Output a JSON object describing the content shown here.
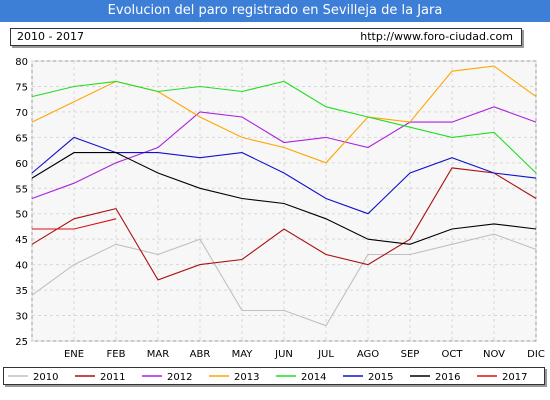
{
  "title": "Evolucion del paro registrado en Sevilleja de la Jara",
  "info_left": "2010 - 2017",
  "info_right": "http://www.foro-ciudad.com",
  "chart_data": {
    "type": "line",
    "title": "Evolucion del paro registrado en Sevilleja de la Jara",
    "x": [
      "",
      "ENE",
      "FEB",
      "MAR",
      "ABR",
      "MAY",
      "JUN",
      "JUL",
      "AGO",
      "SEP",
      "OCT",
      "NOV",
      "DIC"
    ],
    "ylim": [
      25,
      80
    ],
    "yticks": [
      25,
      30,
      35,
      40,
      45,
      50,
      55,
      60,
      65,
      70,
      75,
      80
    ],
    "grid": true,
    "legend_position": "bottom",
    "series": [
      {
        "name": "2010",
        "color": "#c0c0c0",
        "values": [
          34,
          40,
          44,
          42,
          45,
          31,
          31,
          28,
          42,
          42,
          44,
          46,
          43
        ]
      },
      {
        "name": "2011",
        "color": "#aa1111",
        "values": [
          44,
          49,
          51,
          37,
          40,
          41,
          47,
          42,
          40,
          45,
          59,
          58,
          53
        ]
      },
      {
        "name": "2012",
        "color": "#aa22dd",
        "values": [
          53,
          56,
          60,
          63,
          70,
          69,
          64,
          65,
          63,
          68,
          68,
          71,
          68
        ]
      },
      {
        "name": "2013",
        "color": "#ffa500",
        "values": [
          68,
          72,
          76,
          74,
          69,
          65,
          63,
          60,
          69,
          68,
          78,
          79,
          73
        ]
      },
      {
        "name": "2014",
        "color": "#22dd22",
        "values": [
          73,
          75,
          76,
          74,
          75,
          74,
          76,
          71,
          69,
          67,
          65,
          66,
          58
        ]
      },
      {
        "name": "2015",
        "color": "#1111cc",
        "values": [
          58,
          65,
          62,
          62,
          61,
          62,
          58,
          53,
          50,
          58,
          61,
          58,
          57
        ]
      },
      {
        "name": "2016",
        "color": "#000000",
        "values": [
          57,
          62,
          62,
          58,
          55,
          53,
          52,
          49,
          45,
          44,
          47,
          48,
          47
        ]
      },
      {
        "name": "2017",
        "color": "#dd1111",
        "values": [
          47,
          47,
          49,
          null,
          null,
          null,
          null,
          null,
          null,
          null,
          null,
          null,
          null
        ]
      }
    ]
  }
}
